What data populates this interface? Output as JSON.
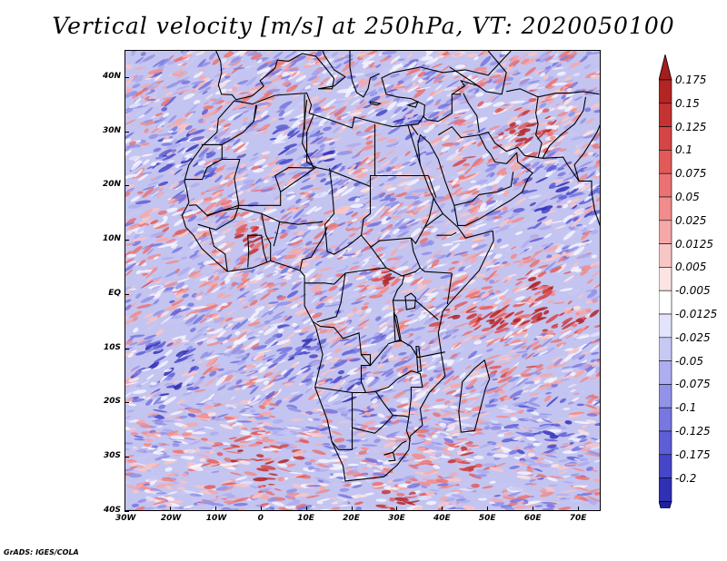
{
  "title": "Vertical velocity [m/s] at 250hPa, VT: 2020050100",
  "credit": "GrADS: IGES/COLA",
  "map": {
    "lon_range": [
      -30,
      75
    ],
    "lat_range": [
      -40,
      45
    ],
    "lon_ticks": [
      {
        "value": -30,
        "label": "30W"
      },
      {
        "value": -20,
        "label": "20W"
      },
      {
        "value": -10,
        "label": "10W"
      },
      {
        "value": 0,
        "label": "0"
      },
      {
        "value": 10,
        "label": "10E"
      },
      {
        "value": 20,
        "label": "20E"
      },
      {
        "value": 30,
        "label": "30E"
      },
      {
        "value": 40,
        "label": "40E"
      },
      {
        "value": 50,
        "label": "50E"
      },
      {
        "value": 60,
        "label": "60E"
      },
      {
        "value": 70,
        "label": "70E"
      }
    ],
    "lat_ticks": [
      {
        "value": 40,
        "label": "40N"
      },
      {
        "value": 30,
        "label": "30N"
      },
      {
        "value": 20,
        "label": "20N"
      },
      {
        "value": 10,
        "label": "10N"
      },
      {
        "value": 0,
        "label": "EQ"
      },
      {
        "value": -10,
        "label": "10S"
      },
      {
        "value": -20,
        "label": "20S"
      },
      {
        "value": -30,
        "label": "30S"
      },
      {
        "value": -40,
        "label": "40S"
      }
    ],
    "ascent_regions": [
      {
        "lon": 62,
        "lat": 2,
        "rlon": 6,
        "rlat": 2,
        "strength": 1.0
      },
      {
        "lon": 48,
        "lat": -4,
        "rlon": 10,
        "rlat": 2,
        "strength": 0.9
      },
      {
        "lon": 66,
        "lat": -4,
        "rlon": 8,
        "rlat": 2.5,
        "strength": 0.8
      },
      {
        "lon": 60,
        "lat": 30,
        "rlon": 7,
        "rlat": 4,
        "strength": 0.7
      },
      {
        "lon": 0,
        "lat": -31,
        "rlon": 8,
        "rlat": 4,
        "strength": 0.7
      },
      {
        "lon": 30,
        "lat": -38,
        "rlon": 6,
        "rlat": 2,
        "strength": 0.6
      },
      {
        "lon": 22,
        "lat": 27,
        "rlon": 5,
        "rlat": 4,
        "strength": 0.55
      },
      {
        "lon": -2,
        "lat": 10,
        "rlon": 5,
        "rlat": 3,
        "strength": 0.5
      },
      {
        "lon": 27,
        "lat": 3,
        "rlon": 2,
        "rlat": 2,
        "strength": 0.7
      },
      {
        "lon": 45,
        "lat": 23,
        "rlon": 4,
        "rlat": 4,
        "strength": 0.45
      },
      {
        "lon": 44,
        "lat": -31,
        "rlon": 5,
        "rlat": 3,
        "strength": 0.5
      },
      {
        "lon": -20,
        "lat": 12,
        "rlon": 4,
        "rlat": 2,
        "strength": 0.4
      },
      {
        "lon": -26,
        "lat": 3,
        "rlon": 4,
        "rlat": 1.5,
        "strength": 0.4
      },
      {
        "lon": 55,
        "lat": -13,
        "rlon": 6,
        "rlat": 1.5,
        "strength": 0.45
      }
    ],
    "descent_regions": [
      {
        "lon": 18,
        "lat": 25,
        "rlon": 6,
        "rlat": 4,
        "strength": 0.8
      },
      {
        "lon": 5,
        "lat": 28,
        "rlon": 4,
        "rlat": 3,
        "strength": 0.6
      },
      {
        "lon": 65,
        "lat": 18,
        "rlon": 8,
        "rlat": 8,
        "strength": 0.5
      },
      {
        "lon": -22,
        "lat": -14,
        "rlon": 8,
        "rlat": 8,
        "strength": 0.6
      },
      {
        "lon": -18,
        "lat": 26,
        "rlon": 8,
        "rlat": 6,
        "strength": 0.5
      },
      {
        "lon": 20,
        "lat": -18,
        "rlon": 6,
        "rlat": 6,
        "strength": 0.45
      },
      {
        "lon": 30,
        "lat": 32,
        "rlon": 6,
        "rlat": 4,
        "strength": 0.6
      },
      {
        "lon": 63,
        "lat": -25,
        "rlon": 8,
        "rlat": 6,
        "strength": 0.5
      },
      {
        "lon": 8,
        "lat": -10,
        "rlon": 6,
        "rlat": 6,
        "strength": 0.45
      }
    ]
  },
  "colorbar": {
    "levels": [
      {
        "label": "0.175",
        "color": "#b32525"
      },
      {
        "label": "0.15",
        "color": "#c43232"
      },
      {
        "label": "0.125",
        "color": "#d44545"
      },
      {
        "label": "0.1",
        "color": "#e05a5a"
      },
      {
        "label": "0.075",
        "color": "#ea7272"
      },
      {
        "label": "0.05",
        "color": "#f08c8c"
      },
      {
        "label": "0.025",
        "color": "#f5a8a8"
      },
      {
        "label": "0.0125",
        "color": "#f9c6c6"
      },
      {
        "label": "0.005",
        "color": "#fde4e4"
      },
      {
        "label": "-0.005",
        "color": "#ffffff"
      },
      {
        "label": "-0.0125",
        "color": "#e3e3fb"
      },
      {
        "label": "-0.025",
        "color": "#c8c8f5"
      },
      {
        "label": "-0.05",
        "color": "#adadef"
      },
      {
        "label": "-0.075",
        "color": "#9292e8"
      },
      {
        "label": "-0.1",
        "color": "#7777df"
      },
      {
        "label": "-0.125",
        "color": "#5e5ed5"
      },
      {
        "label": "-0.175",
        "color": "#4646c8"
      },
      {
        "label": "-0.2",
        "color": "#3030b5"
      }
    ],
    "top_arrow_color": "#a51e1e",
    "bottom_arrow_color": "#2020a0"
  }
}
